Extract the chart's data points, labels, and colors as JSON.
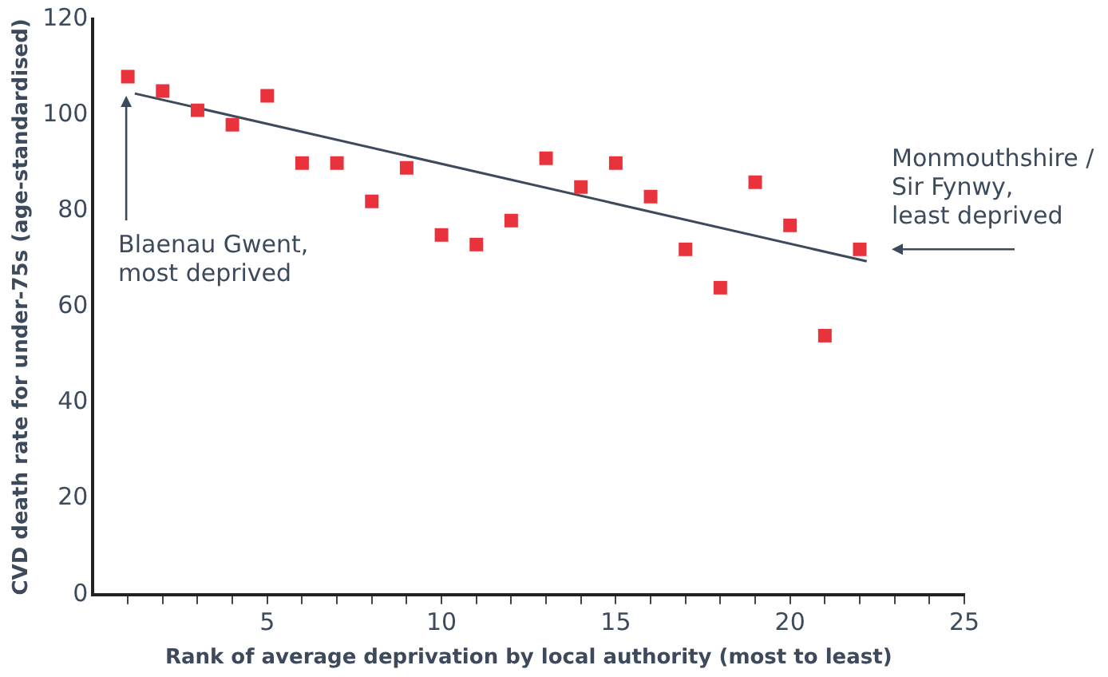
{
  "chart_data": {
    "type": "scatter",
    "xlabel": "Rank of average deprivation by local authority (most to least)",
    "ylabel": "CVD death rate for under-75s (age-standardised)",
    "xlim": [
      0,
      25
    ],
    "xticks": [
      {
        "value": 1,
        "label": null
      },
      {
        "value": 2,
        "label": null
      },
      {
        "value": 3,
        "label": null
      },
      {
        "value": 4,
        "label": null
      },
      5,
      {
        "value": 6,
        "label": null
      },
      {
        "value": 7,
        "label": null
      },
      {
        "value": 8,
        "label": null
      },
      {
        "value": 9,
        "label": null
      },
      10,
      {
        "value": 11,
        "label": null
      },
      {
        "value": 12,
        "label": null
      },
      {
        "value": 13,
        "label": null
      },
      {
        "value": 14,
        "label": null
      },
      15,
      {
        "value": 16,
        "label": null
      },
      {
        "value": 17,
        "label": null
      },
      {
        "value": 18,
        "label": null
      },
      {
        "value": 19,
        "label": null
      },
      20,
      {
        "value": 21,
        "label": null
      },
      {
        "value": 22,
        "label": null
      },
      {
        "value": 23,
        "label": null
      },
      {
        "value": 24,
        "label": null
      },
      25
    ],
    "ylim": [
      0,
      120
    ],
    "yticks": [
      0,
      20,
      40,
      60,
      80,
      100,
      120
    ],
    "grid": false,
    "legend": false,
    "series": [
      {
        "marker": "square",
        "color": "#e8333d",
        "x": [
          1,
          2,
          3,
          4,
          5,
          6,
          7,
          8,
          9,
          10,
          11,
          12,
          13,
          14,
          15,
          16,
          17,
          18,
          19,
          20,
          21,
          22
        ],
        "values": [
          108,
          105,
          101,
          98,
          104,
          90,
          90,
          82,
          89,
          75,
          73,
          78,
          91,
          85,
          90,
          83,
          72,
          64,
          86,
          77,
          54,
          72
        ]
      },
      {
        "type": "line",
        "marker": "none",
        "color": "#3d4a5c",
        "x": [
          1.2,
          22.2
        ],
        "values": [
          104.5,
          69.5
        ]
      }
    ],
    "annotations": [
      "Blaenau Gwent,\nmost deprived",
      "Monmouthshire /\nSir Fynwy,\nleast deprived"
    ]
  }
}
